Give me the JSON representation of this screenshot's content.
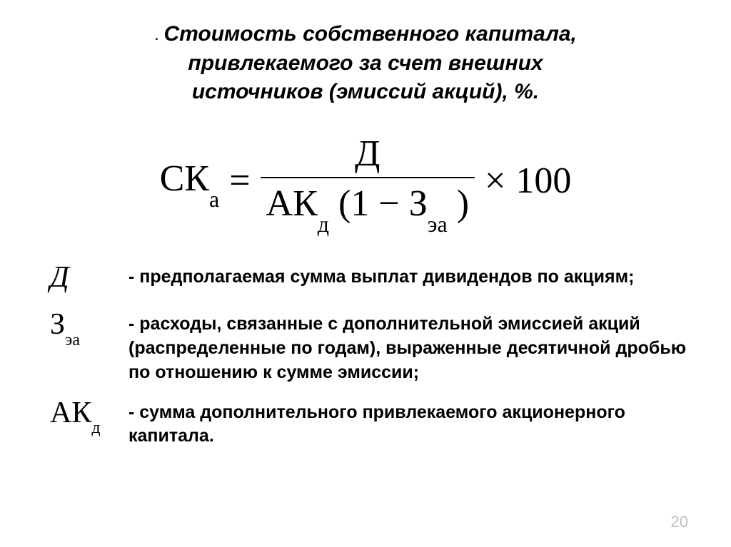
{
  "page": {
    "title_line1": "Стоимость собственного капитала,",
    "title_line2": "привлекаемого за счет внешних",
    "title_line3": "источников (эмиссий акций), %.",
    "formula": {
      "lhs_main": "СК",
      "lhs_sub": "а",
      "eq": "=",
      "numerator": "Д",
      "denom_ak": "АК",
      "denom_ak_sub": "д",
      "denom_open": "(1 −",
      "denom_z": "З",
      "denom_z_sub": "эа",
      "denom_close": ")",
      "times": "×",
      "hundred": "100"
    },
    "defs": [
      {
        "symbol_main": "Д",
        "symbol_sub": "",
        "italic": true,
        "text": "-  предполагаемая сумма выплат дивидендов по акциям;"
      },
      {
        "symbol_main": "З",
        "symbol_sub": "эа",
        "italic": false,
        "text": "-  расходы, связанные с дополнительной эмиссией акций (распределенные по годам), выраженные десятичной дробью по отношению к сумме эмиссии;"
      },
      {
        "symbol_main": "АК",
        "symbol_sub": "д",
        "italic": false,
        "text": "-  сумма дополнительного привлекаемого акционерного капитала."
      }
    ],
    "page_number": "20"
  },
  "colors": {
    "background": "#ffffff",
    "text": "#000000",
    "page_number": "#bfbfbf"
  },
  "typography": {
    "title_fontsize": 30,
    "formula_fontsize": 52,
    "formula_sub_fontsize": 32,
    "def_symbol_fontsize": 42,
    "def_text_fontsize": 25
  }
}
